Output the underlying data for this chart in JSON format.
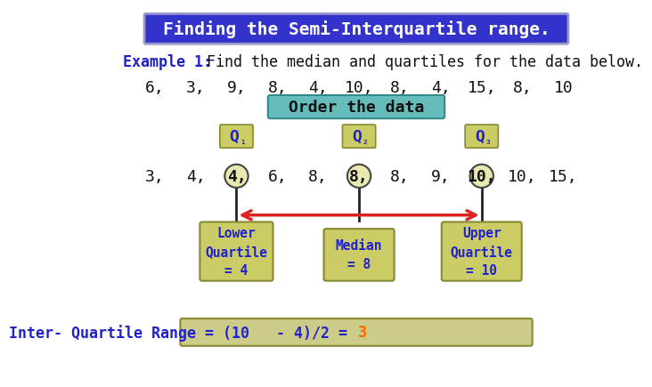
{
  "title": "Finding the Semi-Interquartile range.",
  "title_bg": "#3333cc",
  "title_fg": "#ffffff",
  "title_border": "#9999cc",
  "bg_color": "#ffffff",
  "example_label": "Example 1:",
  "example_rest": "  Find the median and quartiles for the data below.",
  "raw_items": [
    "6,",
    "3,",
    "9,",
    "8,",
    "4,",
    "10,",
    "8,",
    "4,",
    "15,",
    "8,",
    "10"
  ],
  "order_label": "Order the data",
  "order_bg": "#66bbbb",
  "order_border": "#338888",
  "ordered_data": [
    "3,",
    "4,",
    "4,",
    "6,",
    "8,",
    "8,",
    "8,",
    "9,",
    "10,",
    "10,",
    "15,"
  ],
  "q1_index": 2,
  "q2_index": 5,
  "q3_index": 8,
  "circle_face": "#e8e8b0",
  "circle_edge": "#444444",
  "box_bg": "#cccc66",
  "box_edge": "#888833",
  "blue_text": "#2222cc",
  "dark_text": "#111111",
  "red_arrow": "#dd2222",
  "lower_box": "Lower\nQuartile\n= 4",
  "median_box": "Median\n= 8",
  "upper_box": "Upper\nQuartile\n= 10",
  "iqr_text_blue": "Inter- Quartile Range = (10   - 4)/2 = ",
  "iqr_value": "3",
  "iqr_value_color": "#ff6600",
  "iqr_bg": "#cccc88",
  "iqr_border": "#888833",
  "q_box_bg": "#cccc66",
  "q_box_border": "#888833"
}
